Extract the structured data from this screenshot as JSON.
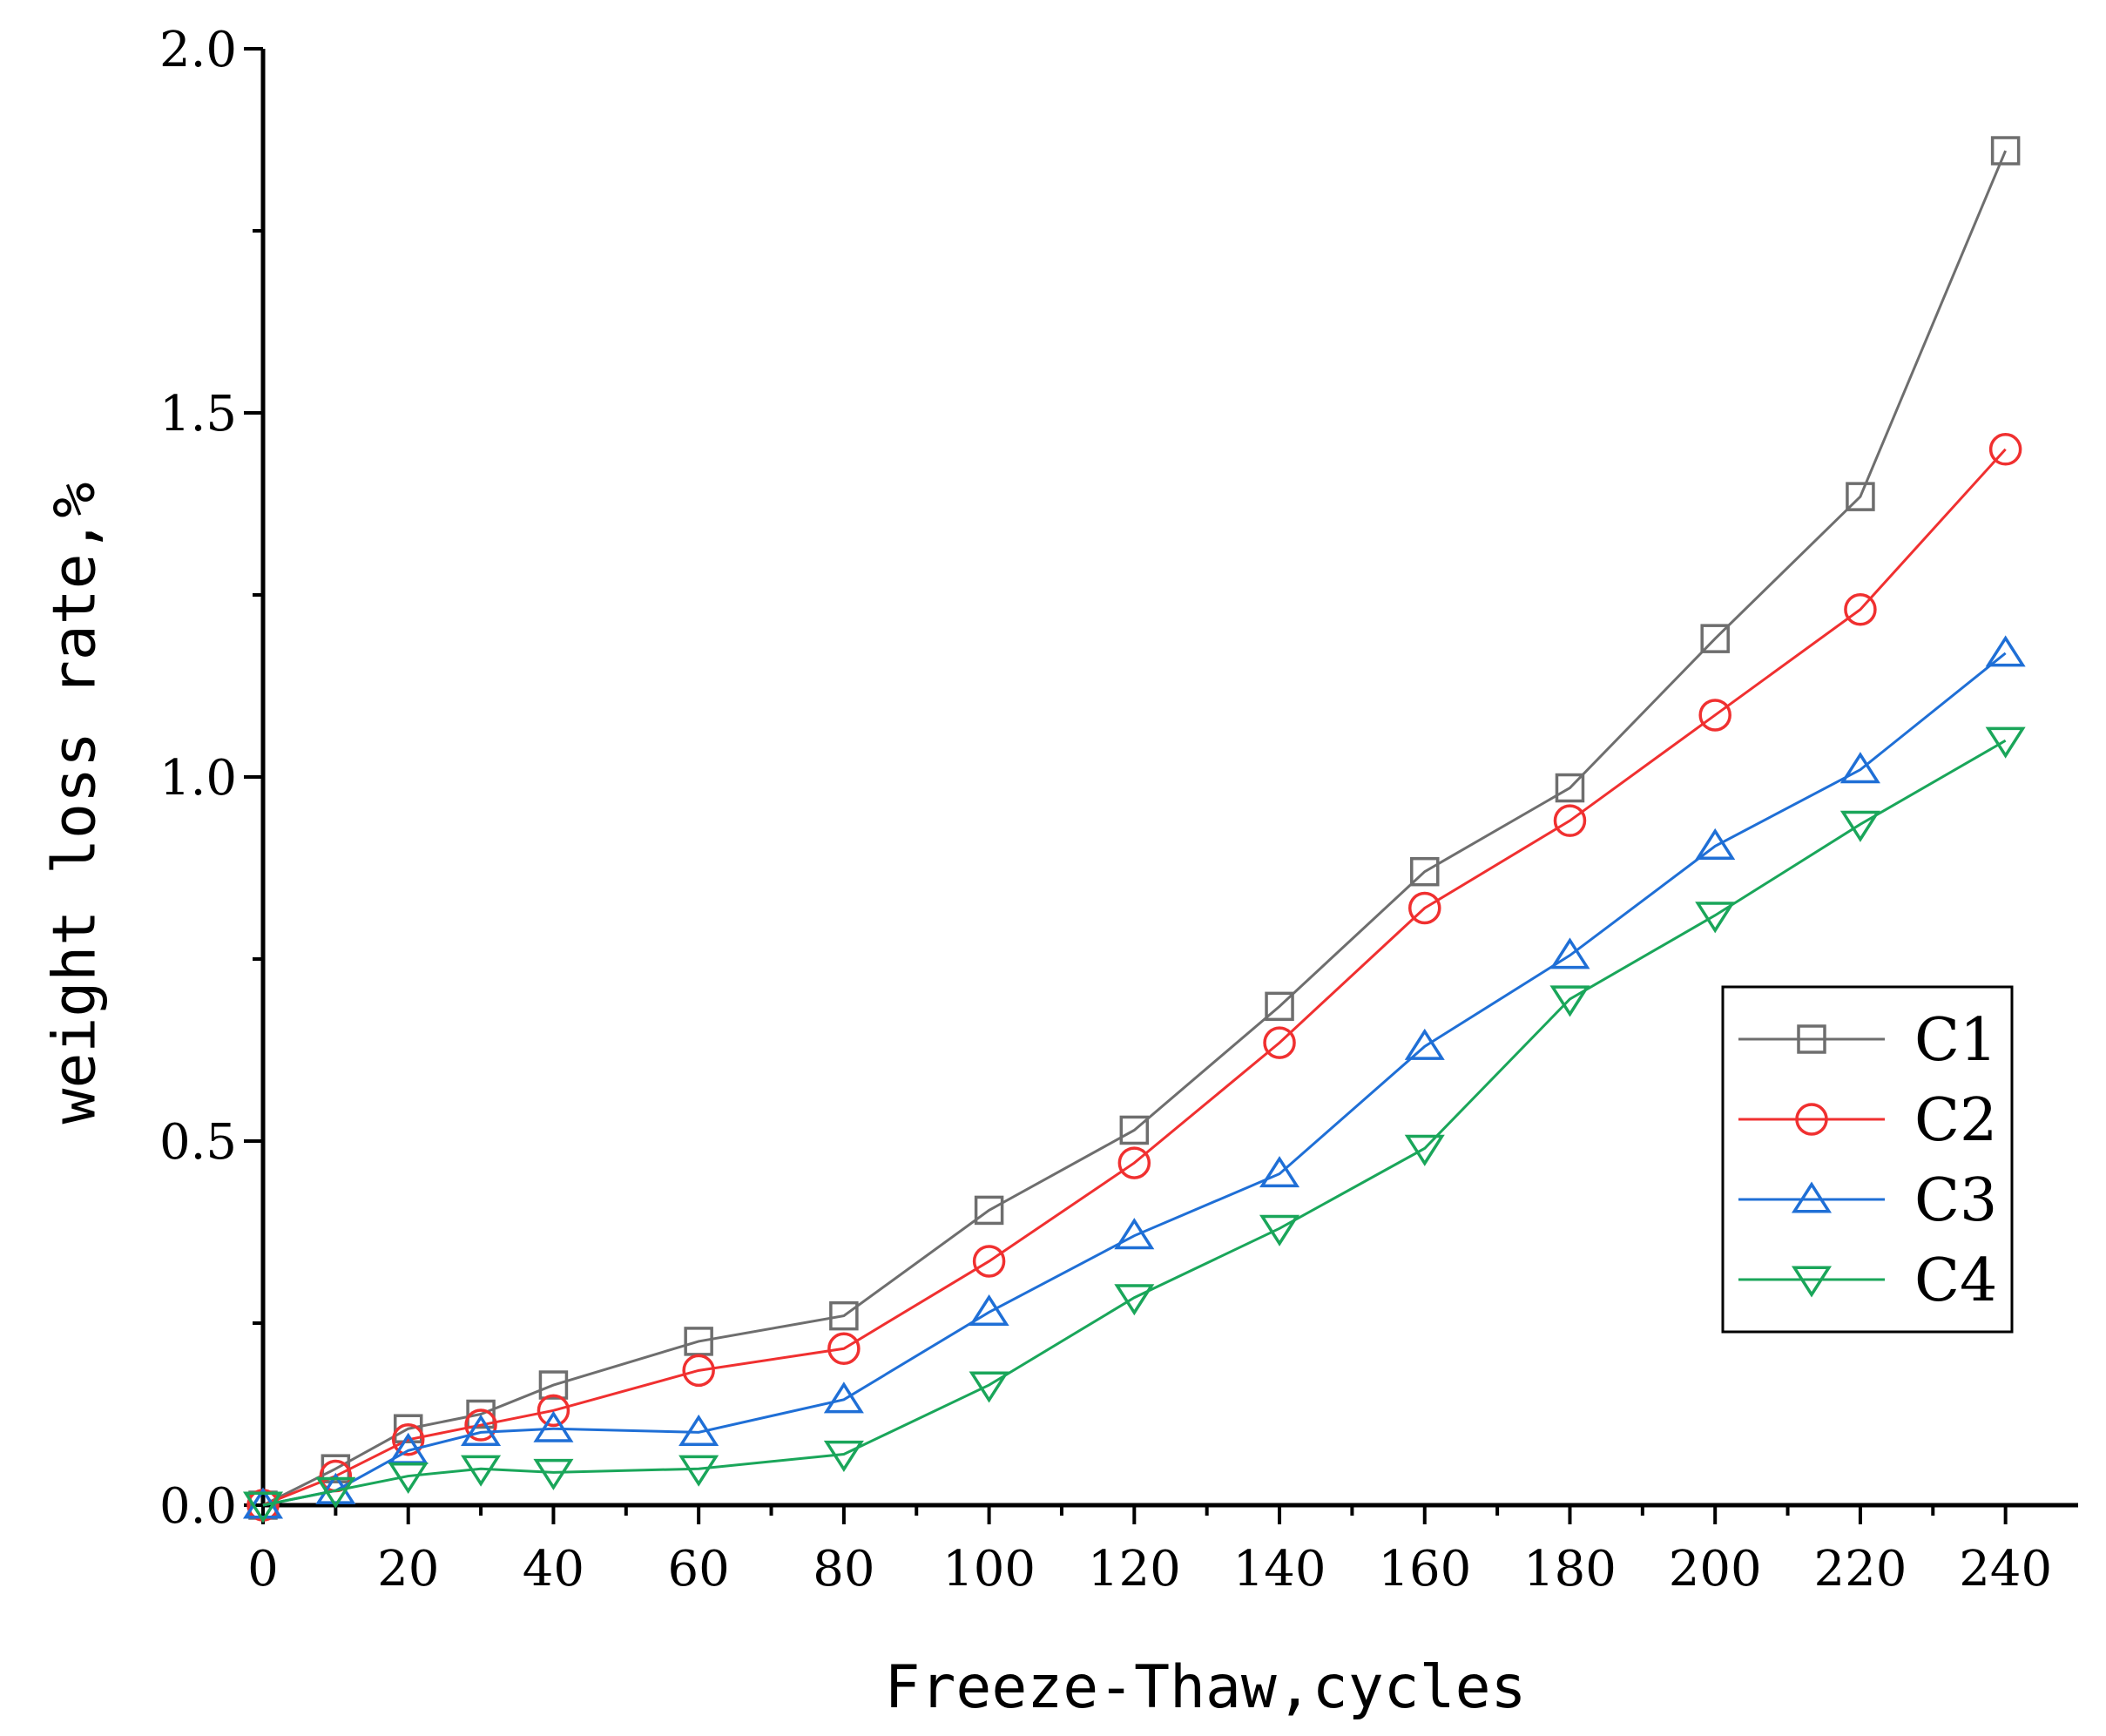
{
  "chart_data": {
    "type": "line",
    "title": "",
    "xlabel": "Freeze-Thaw,cycles",
    "ylabel": "weight loss rate,%",
    "xlim": [
      0,
      250
    ],
    "ylim": [
      0,
      2.0
    ],
    "xticks": [
      "0",
      "20",
      "40",
      "60",
      "80",
      "100",
      "120",
      "140",
      "160",
      "180",
      "200",
      "220",
      "240"
    ],
    "yticks": [
      "0.0",
      "0.5",
      "1.0",
      "1.5",
      "2.0"
    ],
    "grid": false,
    "legend_position": "right",
    "x": [
      0,
      10,
      20,
      30,
      40,
      60,
      80,
      100,
      120,
      140,
      160,
      180,
      200,
      220,
      240
    ],
    "series": [
      {
        "name": "C1",
        "color": "#6e6e6e",
        "marker": "square",
        "values": [
          0.0,
          0.05,
          0.105,
          0.125,
          0.165,
          0.225,
          0.26,
          0.405,
          0.515,
          0.685,
          0.87,
          0.985,
          1.19,
          1.385,
          1.86
        ]
      },
      {
        "name": "C2",
        "color": "#f03030",
        "marker": "circle",
        "values": [
          0.0,
          0.04,
          0.09,
          0.11,
          0.13,
          0.185,
          0.215,
          0.335,
          0.47,
          0.635,
          0.82,
          0.94,
          1.085,
          1.23,
          1.45
        ]
      },
      {
        "name": "C3",
        "color": "#1f6fd6",
        "marker": "triangle-up",
        "values": [
          0.0,
          0.02,
          0.075,
          0.1,
          0.105,
          0.1,
          0.145,
          0.265,
          0.37,
          0.455,
          0.63,
          0.755,
          0.905,
          1.01,
          1.17
        ]
      },
      {
        "name": "C4",
        "color": "#1aa65a",
        "marker": "triangle-down",
        "values": [
          0.0,
          0.02,
          0.04,
          0.05,
          0.045,
          0.05,
          0.07,
          0.165,
          0.285,
          0.38,
          0.49,
          0.695,
          0.81,
          0.935,
          1.05
        ]
      }
    ]
  }
}
